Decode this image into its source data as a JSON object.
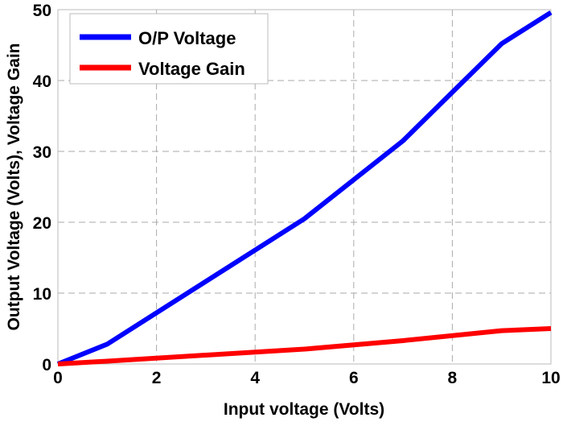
{
  "chart_data": {
    "type": "line",
    "title": "",
    "xlabel": "Input voltage (Volts)",
    "ylabel": "Output Voltage (Volts), Voltage Gain",
    "xlim": [
      0,
      10
    ],
    "ylim": [
      0,
      50
    ],
    "xticks": [
      0,
      2,
      4,
      6,
      8,
      10
    ],
    "yticks": [
      0,
      10,
      20,
      30,
      40,
      50
    ],
    "grid": true,
    "legend_position": "top-left",
    "series": [
      {
        "name": "O/P Voltage",
        "color": "#0000ff",
        "x": [
          0,
          1,
          5,
          7,
          9,
          10
        ],
        "y": [
          0,
          2.8,
          20.5,
          31.5,
          45.2,
          49.6
        ]
      },
      {
        "name": "Voltage Gain",
        "color": "#ff0000",
        "x": [
          0,
          1,
          5,
          7,
          9,
          10
        ],
        "y": [
          0,
          0.4,
          2.1,
          3.3,
          4.7,
          5.0
        ]
      }
    ]
  }
}
